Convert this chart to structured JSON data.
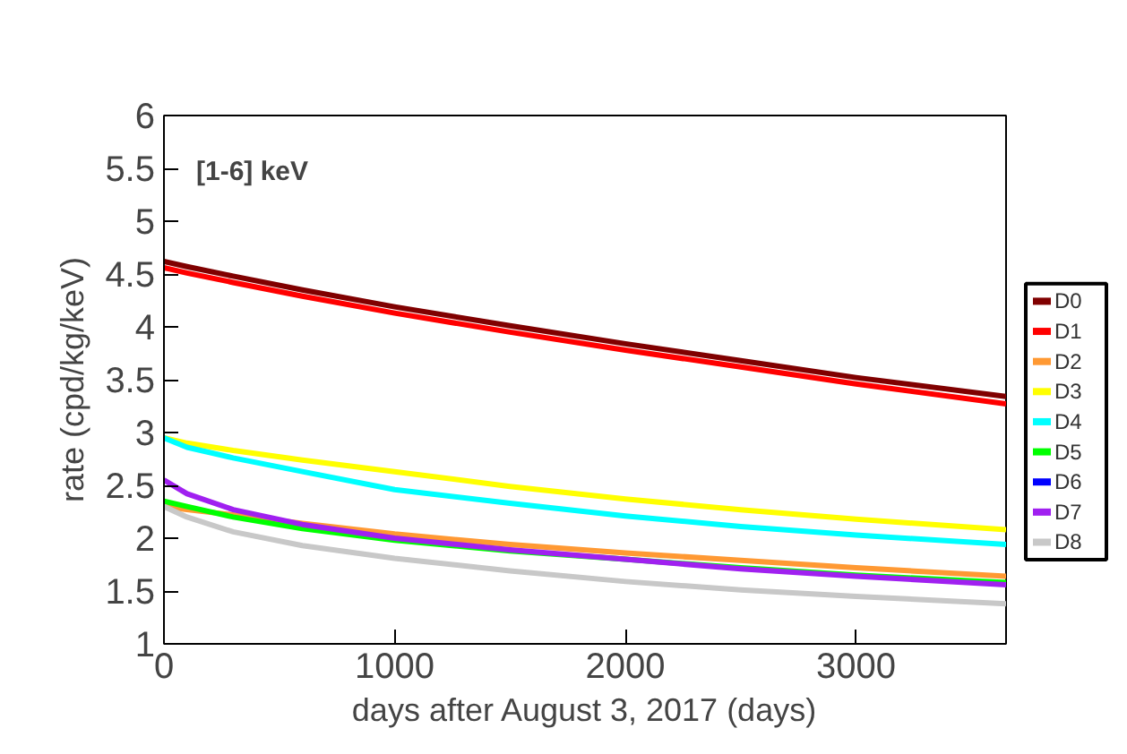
{
  "chart_data": {
    "type": "line",
    "xlabel": "days after August 3, 2017 (days)",
    "ylabel": "rate (cpd/kg/keV)",
    "annotations": [
      "[1-6] keV"
    ],
    "x": [
      0,
      100,
      300,
      600,
      1000,
      1500,
      2000,
      2500,
      3000,
      3650
    ],
    "xlim": [
      0,
      3650
    ],
    "xticks": [
      0,
      1000,
      2000,
      3000
    ],
    "ylim": [
      1,
      6
    ],
    "yticks": [
      1,
      1.5,
      2,
      2.5,
      3,
      3.5,
      4,
      4.5,
      5,
      5.5,
      6
    ],
    "grid": false,
    "legend": "right",
    "line_style": "solid",
    "marker": "none",
    "series": [
      {
        "name": "D0",
        "color": "#800000",
        "values": [
          4.62,
          4.57,
          4.48,
          4.35,
          4.19,
          4.01,
          3.84,
          3.68,
          3.52,
          3.34
        ]
      },
      {
        "name": "D1",
        "color": "#ff0000",
        "values": [
          4.56,
          4.51,
          4.42,
          4.29,
          4.13,
          3.95,
          3.78,
          3.62,
          3.46,
          3.27
        ]
      },
      {
        "name": "D2",
        "color": "#ff9933",
        "values": [
          2.3,
          2.27,
          2.22,
          2.14,
          2.04,
          1.94,
          1.86,
          1.79,
          1.72,
          1.64
        ]
      },
      {
        "name": "D3",
        "color": "#ffff00",
        "values": [
          2.95,
          2.9,
          2.83,
          2.74,
          2.63,
          2.49,
          2.37,
          2.27,
          2.18,
          2.08
        ]
      },
      {
        "name": "D4",
        "color": "#00ffff",
        "values": [
          2.95,
          2.86,
          2.76,
          2.63,
          2.46,
          2.33,
          2.21,
          2.11,
          2.03,
          1.94
        ]
      },
      {
        "name": "D5",
        "color": "#00ff00",
        "values": [
          2.35,
          2.3,
          2.2,
          2.09,
          1.98,
          1.88,
          1.8,
          1.72,
          1.65,
          1.58
        ]
      },
      {
        "name": "D6",
        "color": "#0000ff",
        "values": [
          null,
          null,
          null,
          null,
          null,
          null,
          null,
          null,
          null,
          null
        ]
      },
      {
        "name": "D7",
        "color": "#a020f0",
        "values": [
          2.55,
          2.42,
          2.27,
          2.13,
          2.0,
          1.89,
          1.8,
          1.71,
          1.64,
          1.56
        ]
      },
      {
        "name": "D8",
        "color": "#c8c8c8",
        "values": [
          2.3,
          2.2,
          2.06,
          1.93,
          1.81,
          1.69,
          1.59,
          1.51,
          1.45,
          1.38
        ]
      }
    ]
  }
}
